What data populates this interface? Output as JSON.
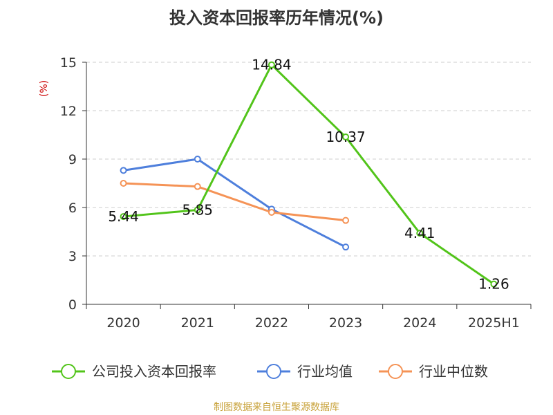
{
  "chart_data": {
    "type": "line",
    "title": "投入资本回报率历年情况(%)",
    "ylabel": "(%)",
    "categories": [
      "2020",
      "2021",
      "2022",
      "2023",
      "2024",
      "2025H1"
    ],
    "ylim": [
      0,
      15
    ],
    "yticks": [
      "0",
      "3",
      "6",
      "9",
      "12",
      "15"
    ],
    "grid": true,
    "legend_position": "bottom",
    "series": [
      {
        "name": "公司投入资本回报率",
        "color": "#52c41a",
        "values": [
          5.44,
          5.85,
          14.84,
          10.37,
          4.41,
          1.26
        ],
        "labels": [
          "5.44",
          "5.85",
          "14.84",
          "10.37",
          "4.41",
          "1.26"
        ]
      },
      {
        "name": "行业均值",
        "color": "#4e7fdc",
        "values": [
          8.3,
          9.0,
          5.9,
          3.55,
          null,
          null
        ]
      },
      {
        "name": "行业中位数",
        "color": "#f59356",
        "values": [
          7.5,
          7.3,
          5.7,
          5.2,
          null,
          null
        ]
      }
    ]
  },
  "source": "制图数据来自恒生聚源数据库",
  "colors": {
    "unit": "#cc0000",
    "source": "#c8a23a",
    "grid": "#cccccc",
    "axis": "#333333"
  }
}
